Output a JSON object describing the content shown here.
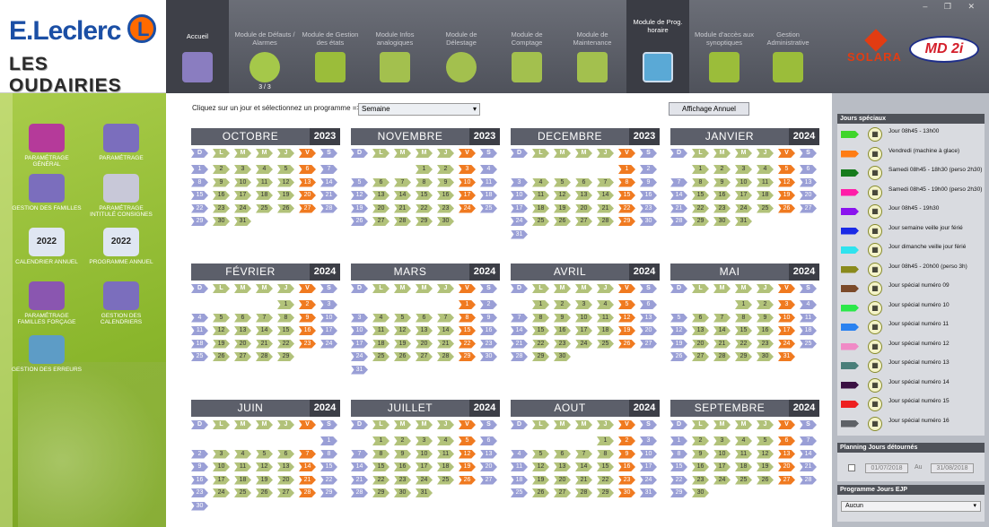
{
  "brand": {
    "name": "E.Leclerc",
    "site": "LES OUDAIRIES",
    "solara": "SOLARA",
    "md": "MD 2i"
  },
  "modules": [
    {
      "label": "Accueil"
    },
    {
      "label": "Module de Défauts / Alarmes",
      "badge": "3 / 3"
    },
    {
      "label": "Module de Gestion des états"
    },
    {
      "label": "Module Infos analogiques"
    },
    {
      "label": "Module de Délestage"
    },
    {
      "label": "Module de Comptage"
    },
    {
      "label": "Module de Maintenance"
    },
    {
      "label": "Module de Prog. horaire"
    },
    {
      "label": "Module d'accès aux synoptiques"
    },
    {
      "label": "Gestion Administrative"
    }
  ],
  "sidebar": [
    {
      "label": "Paramétrage général"
    },
    {
      "label": "Paramétrage"
    },
    {
      "label": "Gestion des familles"
    },
    {
      "label": "Paramétrage intitulé consignes"
    },
    {
      "label": "Calendrier annuel",
      "year": "2022"
    },
    {
      "label": "Programme annuel",
      "year": "2022"
    },
    {
      "label": "Paramétrage familles forçage"
    },
    {
      "label": "Gestion des calendriers"
    },
    {
      "label": "Gestion des erreurs"
    }
  ],
  "main": {
    "prompt": "Cliquez sur un jour et sélectionnez un programme =>",
    "program_select": "Semaine",
    "annual_button": "Affichage Annuel",
    "day_headers": [
      "D",
      "L",
      "M",
      "M",
      "J",
      "V",
      "S"
    ]
  },
  "calendar": [
    {
      "month": "OCTOBRE",
      "year": "2023",
      "start": 0,
      "days": 31,
      "orange": [
        6,
        7,
        13,
        14,
        20,
        21,
        27,
        28
      ],
      "blue": [
        1,
        8,
        15,
        22,
        29
      ]
    },
    {
      "month": "NOVEMBRE",
      "year": "2023",
      "start": 3,
      "days": 30
    },
    {
      "month": "DECEMBRE",
      "year": "2023",
      "start": 5,
      "days": 31
    },
    {
      "month": "JANVIER",
      "year": "2024",
      "start": 1,
      "days": 31
    },
    {
      "month": "FÉVRIER",
      "year": "2024",
      "start": 4,
      "days": 29
    },
    {
      "month": "MARS",
      "year": "2024",
      "start": 5,
      "days": 31
    },
    {
      "month": "AVRIL",
      "year": "2024",
      "start": 1,
      "days": 30
    },
    {
      "month": "MAI",
      "year": "2024",
      "start": 3,
      "days": 31
    },
    {
      "month": "JUIN",
      "year": "2024",
      "start": 6,
      "days": 30
    },
    {
      "month": "JUILLET",
      "year": "2024",
      "start": 1,
      "days": 31
    },
    {
      "month": "AOUT",
      "year": "2024",
      "start": 4,
      "days": 31
    },
    {
      "month": "SEPTEMBRE",
      "year": "2024",
      "start": 0,
      "days": 30
    }
  ],
  "jours_speciaux": {
    "title": "Jours spéciaux",
    "items": [
      {
        "color": "#3fd52a",
        "label": "Jour 08h45 - 13h00"
      },
      {
        "color": "#ff7c14",
        "label": "Vendredi (machine à glace)"
      },
      {
        "color": "#167b1c",
        "label": "Samedi 08h45 - 18h30 (perso 2h30)"
      },
      {
        "color": "#ff1da8",
        "label": "Samedi 08h45 - 19h00 (perso 2h30)"
      },
      {
        "color": "#8a14ee",
        "label": "Jour 08h45 - 19h30"
      },
      {
        "color": "#1a2ae6",
        "label": "Jour semaine veille jour férié"
      },
      {
        "color": "#2fe3ee",
        "label": "Jour dimanche veille jour férié"
      },
      {
        "color": "#8a8a1c",
        "label": "Jour 08h45 - 20h00 (perso 3h)"
      },
      {
        "color": "#7b4a2a",
        "label": "Jour spécial numéro 09"
      },
      {
        "color": "#2be84a",
        "label": "Jour spécial numéro 10"
      },
      {
        "color": "#2a82f0",
        "label": "Jour spécial numéro 11"
      },
      {
        "color": "#f08ac6",
        "label": "Jour spécial numéro 12"
      },
      {
        "color": "#4a7f7a",
        "label": "Jour spécial numéro 13"
      },
      {
        "color": "#3a1042",
        "label": "Jour spécial numéro 14"
      },
      {
        "color": "#ee2020",
        "label": "Jour spécial numéro 15"
      },
      {
        "color": "#5e6166",
        "label": "Jour spécial numéro 16"
      }
    ]
  },
  "planning": {
    "title": "Planning Jours détournés",
    "from": "01/07/2018",
    "to_label": "Au",
    "to": "31/08/2018"
  },
  "ejp": {
    "title": "Programme Jours EJP",
    "value": "Aucun"
  }
}
